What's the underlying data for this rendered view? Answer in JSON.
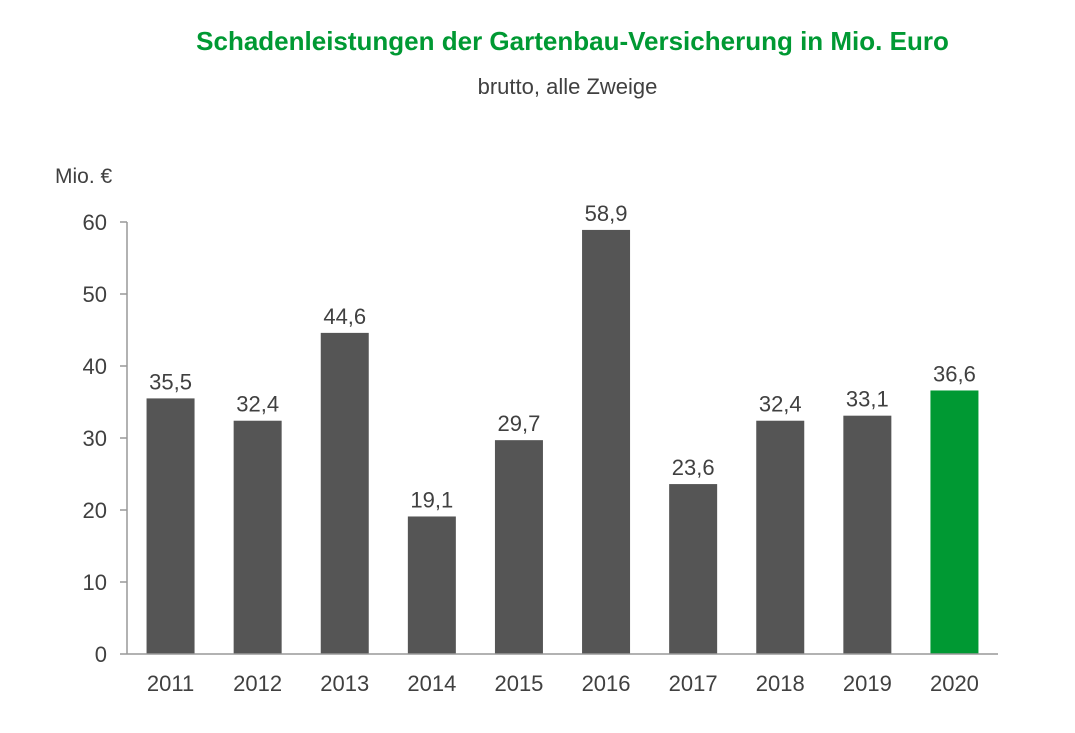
{
  "chart_data": {
    "type": "bar",
    "title": "Schadenleistungen der Gartenbau-Versicherung in Mio. Euro",
    "subtitle": "brutto, alle Zweige",
    "ylabel": "Mio. €",
    "xlabel": "",
    "categories": [
      "2011",
      "2012",
      "2013",
      "2014",
      "2015",
      "2016",
      "2017",
      "2018",
      "2019",
      "2020"
    ],
    "values": [
      35.5,
      32.4,
      44.6,
      19.1,
      29.7,
      58.9,
      23.6,
      32.4,
      33.1,
      36.6
    ],
    "value_labels": [
      "35,5",
      "32,4",
      "44,6",
      "19,1",
      "29,7",
      "58,9",
      "23,6",
      "32,4",
      "33,1",
      "36,6"
    ],
    "ylim": [
      0,
      60
    ],
    "yticks": [
      0,
      10,
      20,
      30,
      40,
      50,
      60
    ],
    "grid": false,
    "colors": {
      "bar": "#555555",
      "highlight_bar": "#009933",
      "title": "#009933",
      "text": "#404040",
      "axis": "#999999"
    },
    "highlight_index": 9
  }
}
